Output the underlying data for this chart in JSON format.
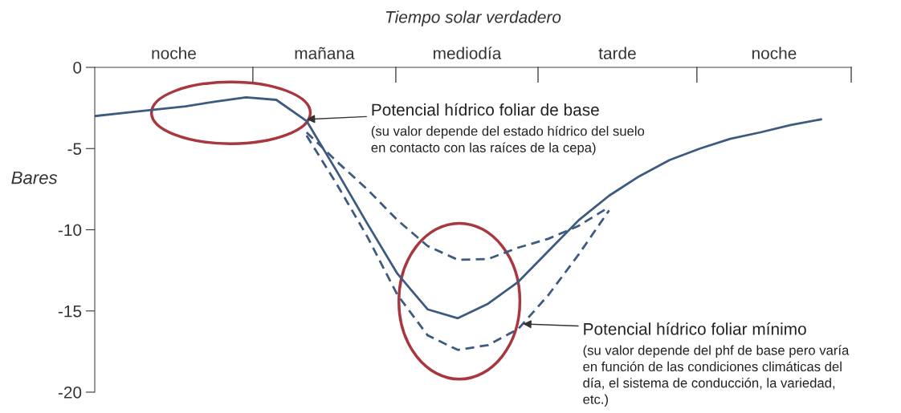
{
  "chart_data": {
    "type": "line",
    "title": "Tiempo solar verdadero",
    "ylabel": "Bares",
    "categories": [
      null,
      null,
      null,
      null,
      null,
      null,
      null,
      null,
      null,
      null,
      null,
      null,
      null,
      null,
      null,
      null,
      null,
      null,
      null,
      null,
      null,
      null,
      null,
      null,
      null,
      null
    ],
    "ylim": [
      -20,
      0
    ],
    "yticks": [
      0,
      -5,
      -10,
      -15,
      -20
    ],
    "grid": false,
    "series": [
      {
        "color": "#3d5a80",
        "line_style": "solid",
        "values": [
          -3.0,
          -2.8,
          -2.6,
          -2.4,
          -2.1,
          -1.85,
          -2.0,
          -3.3,
          -6.4,
          -9.6,
          -12.7,
          -14.9,
          -15.45,
          -14.55,
          -13.2,
          -11.3,
          -9.4,
          -7.9,
          -6.7,
          -5.7,
          -5.0,
          -4.4,
          -4.0,
          -3.55,
          -3.2,
          null
        ]
      },
      {
        "color": "#3d5a80",
        "line_style": "dashed",
        "values": [
          null,
          null,
          null,
          null,
          null,
          null,
          null,
          -4.0,
          -5.8,
          -7.5,
          -9.4,
          -11.0,
          -11.85,
          -11.8,
          -11.1,
          -10.55,
          -9.75,
          -8.6,
          null,
          null,
          null,
          null,
          null,
          null,
          null,
          null
        ]
      },
      {
        "color": "#3d5a80",
        "line_style": "dashed",
        "values": [
          null,
          null,
          null,
          null,
          null,
          null,
          null,
          -4.2,
          -7.2,
          -10.4,
          -14.0,
          -16.5,
          -17.4,
          -17.1,
          -16.1,
          -14.0,
          -11.5,
          -8.8,
          null,
          null,
          null,
          null,
          null,
          null,
          null,
          null
        ]
      }
    ],
    "annotations": [
      "noche",
      "mañana",
      "mediodía",
      "tarde",
      "noche",
      "Potencial hídrico foliar de base",
      "(su valor depende del estado hídrico del suelo\nen contacto con las raíces de la cepa)",
      "Potencial hídrico foliar mínimo",
      "(su valor depende del phf de base pero varía\nen función de las condiciones climáticas del\ndía, el sistema de conducción, la variedad,\netc.)"
    ]
  }
}
